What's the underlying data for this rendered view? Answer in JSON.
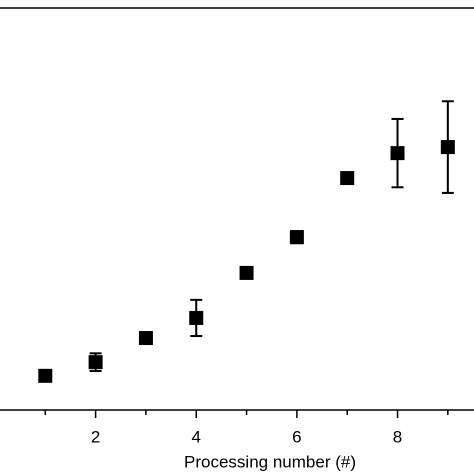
{
  "chart_data": {
    "type": "scatter",
    "x_label": "Processing number (#)",
    "series": [
      {
        "color": "#000000",
        "x": [
          1,
          2,
          3,
          4,
          5,
          6,
          7,
          8,
          9
        ],
        "values": [
          8.5,
          11.9,
          17.9,
          22.9,
          34.1,
          43.0,
          57.7,
          63.9,
          65.4
        ],
        "errors": [
          0.4,
          2.2,
          0.5,
          4.5,
          0.5,
          1.5,
          0.5,
          8.5,
          11.4
        ]
      }
    ],
    "xlim": [
      0.1,
      9.52
    ],
    "xticks": [
      2,
      4,
      6,
      8
    ],
    "xminorticks": [
      1,
      3,
      5,
      7,
      9
    ],
    "ylim": [
      0,
      100
    ]
  }
}
